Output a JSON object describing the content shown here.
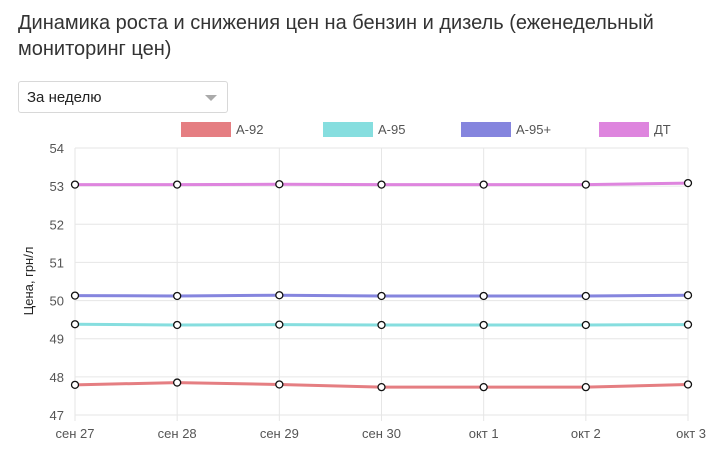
{
  "header": {
    "title": "Динамика роста и снижения цен на бензин и дизель (еженедельный мониторинг цен)"
  },
  "period_select": {
    "value": "За неделю"
  },
  "chart_data": {
    "type": "line",
    "title": "",
    "xlabel": "",
    "ylabel": "Цена, грн/л",
    "categories": [
      "сен 27",
      "сен 28",
      "сен 29",
      "сен 30",
      "окт 1",
      "окт 2",
      "окт 3"
    ],
    "ylim": [
      47,
      54
    ],
    "yticks": [
      47,
      48,
      49,
      50,
      51,
      52,
      53,
      54
    ],
    "grid": true,
    "legend_position": "top",
    "series": [
      {
        "name": "А-92",
        "color": "#e57e82",
        "values": [
          47.79,
          47.85,
          47.8,
          47.73,
          47.73,
          47.73,
          47.8
        ]
      },
      {
        "name": "А-95",
        "color": "#86dedf",
        "values": [
          49.38,
          49.36,
          49.37,
          49.36,
          49.36,
          49.36,
          49.37
        ]
      },
      {
        "name": "А-95+",
        "color": "#8585de",
        "values": [
          50.13,
          50.12,
          50.14,
          50.12,
          50.12,
          50.12,
          50.14
        ]
      },
      {
        "name": "ДТ",
        "color": "#de85de",
        "values": [
          53.04,
          53.04,
          53.05,
          53.04,
          53.04,
          53.04,
          53.08
        ]
      }
    ]
  }
}
